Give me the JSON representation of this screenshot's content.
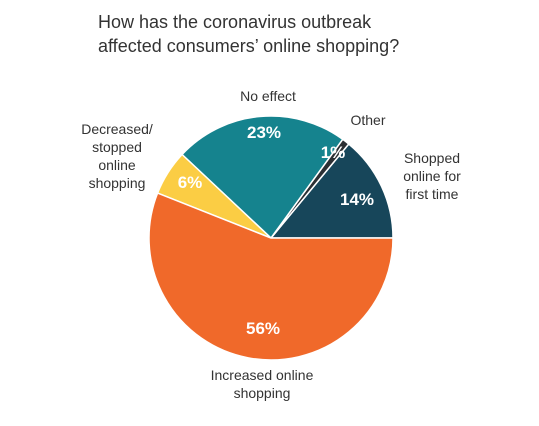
{
  "chart_data": {
    "type": "pie",
    "title": "How has the coronavirus outbreak affected consumers’ online shopping?",
    "title_lines": [
      "How has the coronavirus outbreak",
      "affected consumers’ online shopping?"
    ],
    "slices": [
      {
        "label": "Shopped online for first time",
        "label_lines": [
          "Shopped",
          "online for",
          "first time"
        ],
        "value": 14,
        "value_label": "14%",
        "color": "#17465a"
      },
      {
        "label": "Other",
        "label_lines": [
          "Other"
        ],
        "value": 1,
        "value_label": "1%",
        "color": "#2b2f33"
      },
      {
        "label": "No effect",
        "label_lines": [
          "No effect"
        ],
        "value": 23,
        "value_label": "23%",
        "color": "#15838e"
      },
      {
        "label": "Decreased/ stopped online shopping",
        "label_lines": [
          "Decreased/",
          "stopped",
          "online",
          "shopping"
        ],
        "value": 6,
        "value_label": "6%",
        "color": "#fbcd44"
      },
      {
        "label": "Increased online shopping",
        "label_lines": [
          "Increased online",
          "shopping"
        ],
        "value": 56,
        "value_label": "56%",
        "color": "#f0692a"
      }
    ]
  }
}
